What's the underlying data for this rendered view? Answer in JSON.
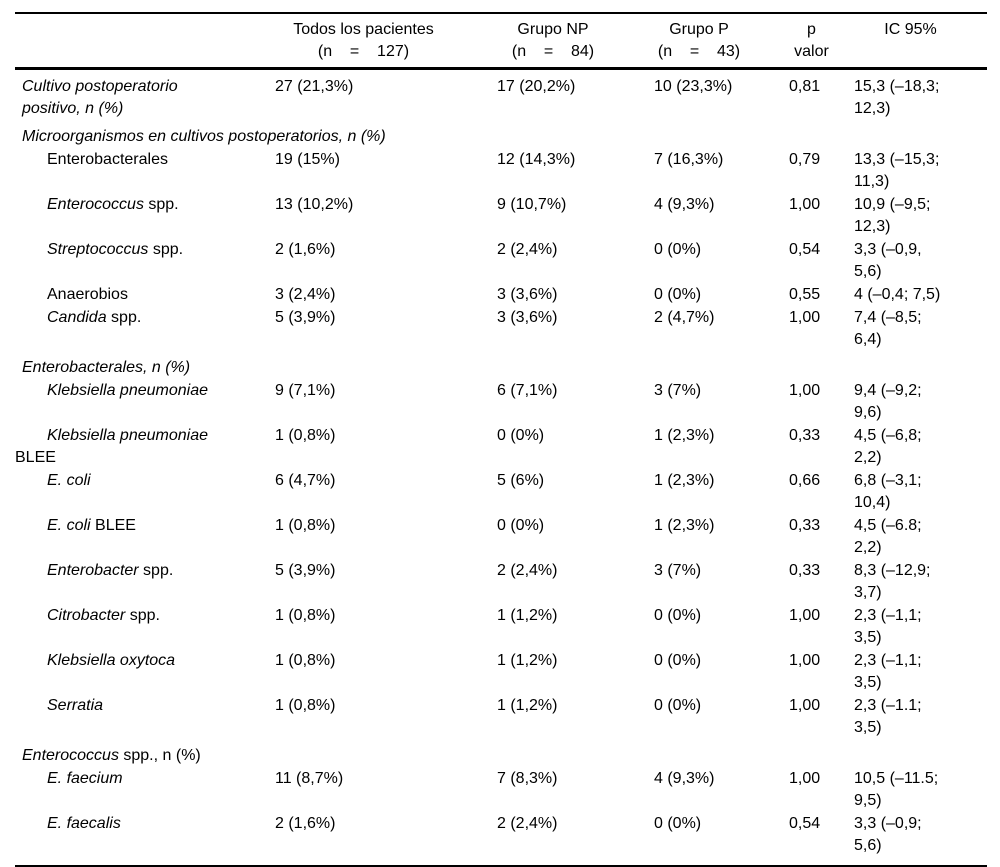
{
  "page": {
    "background": "#ffffff",
    "text_color": "#000000"
  },
  "table": {
    "header": {
      "label_col": "",
      "cols": [
        {
          "line1": "Todos los pacientes",
          "line2": "(n    =    127)"
        },
        {
          "line1": "Grupo NP",
          "line2": "(n    =    84)"
        },
        {
          "line1": "Grupo P",
          "line2": "(n    =    43)"
        },
        {
          "line1": "p valor",
          "line2": ""
        },
        {
          "line1": "IC 95%",
          "line2": ""
        }
      ]
    },
    "rows": [
      {
        "type": "data",
        "label_lines": [
          {
            "indent": 1,
            "segments": [
              {
                "text": "Cultivo postoperatorio",
                "italic": true
              }
            ]
          },
          {
            "indent": 1,
            "segments": [
              {
                "text": "positivo, n (%)",
                "italic": true
              }
            ]
          }
        ],
        "cells": [
          "27 (21,3%)",
          "17 (20,2%)",
          "10 (23,3%)",
          "0,81"
        ],
        "ic": [
          "15,3 (–18,3;",
          "12,3)"
        ]
      },
      {
        "type": "section",
        "label_lines": [
          {
            "indent": 1,
            "segments": [
              {
                "text": "Microorganismos en cultivos postoperatorios, n (%)",
                "italic": true
              }
            ]
          }
        ]
      },
      {
        "type": "data",
        "label_lines": [
          {
            "indent": 2,
            "segments": [
              {
                "text": "Enterobacterales",
                "italic": false
              }
            ]
          }
        ],
        "cells": [
          "19 (15%)",
          "12 (14,3%)",
          "7 (16,3%)",
          "0,79"
        ],
        "ic": [
          "13,3 (–15,3;",
          "11,3)"
        ]
      },
      {
        "type": "data",
        "label_lines": [
          {
            "indent": 2,
            "segments": [
              {
                "text": "Enterococcus",
                "italic": true
              },
              {
                "text": " spp.",
                "italic": false
              }
            ]
          }
        ],
        "cells": [
          "13 (10,2%)",
          "9 (10,7%)",
          "4 (9,3%)",
          "1,00"
        ],
        "ic": [
          "10,9 (–9,5;",
          "12,3)"
        ]
      },
      {
        "type": "data",
        "label_lines": [
          {
            "indent": 2,
            "segments": [
              {
                "text": "Streptococcus",
                "italic": true
              },
              {
                "text": " spp.",
                "italic": false
              }
            ]
          }
        ],
        "cells": [
          "2 (1,6%)",
          "2 (2,4%)",
          "0 (0%)",
          "0,54"
        ],
        "ic": [
          "3,3 (–0,9,",
          "5,6)"
        ]
      },
      {
        "type": "data",
        "label_lines": [
          {
            "indent": 2,
            "segments": [
              {
                "text": "Anaerobios",
                "italic": false
              }
            ]
          }
        ],
        "cells": [
          "3 (2,4%)",
          "3 (3,6%)",
          "0 (0%)",
          "0,55"
        ],
        "ic": [
          "4 (–0,4; 7,5)"
        ]
      },
      {
        "type": "data",
        "label_lines": [
          {
            "indent": 2,
            "segments": [
              {
                "text": "Candida",
                "italic": true
              },
              {
                "text": " spp.",
                "italic": false
              }
            ]
          }
        ],
        "cells": [
          "5 (3,9%)",
          "3 (3,6%)",
          "2 (4,7%)",
          "1,00"
        ],
        "ic": [
          "7,4 (–8,5;",
          "6,4)"
        ]
      },
      {
        "type": "section",
        "label_lines": [
          {
            "indent": 1,
            "segments": [
              {
                "text": "Enterobacterales, n (%)",
                "italic": true
              }
            ]
          }
        ]
      },
      {
        "type": "data",
        "label_lines": [
          {
            "indent": 2,
            "segments": [
              {
                "text": "Klebsiella pneumoniae",
                "italic": true
              }
            ]
          }
        ],
        "cells": [
          "9 (7,1%)",
          "6 (7,1%)",
          "3 (7%)",
          "1,00"
        ],
        "ic": [
          "9,4 (–9,2;",
          "9,6)"
        ]
      },
      {
        "type": "data",
        "label_lines": [
          {
            "indent": 2,
            "segments": [
              {
                "text": "Klebsiella pneumoniae",
                "italic": true
              }
            ]
          },
          {
            "indent": 0,
            "segments": [
              {
                "text": "BLEE",
                "italic": false
              }
            ]
          }
        ],
        "cells": [
          "1 (0,8%)",
          "0 (0%)",
          "1 (2,3%)",
          "0,33"
        ],
        "ic": [
          "4,5 (–6,8;",
          "2,2)"
        ]
      },
      {
        "type": "data",
        "label_lines": [
          {
            "indent": 2,
            "segments": [
              {
                "text": "E. coli",
                "italic": true
              }
            ]
          }
        ],
        "cells": [
          "6 (4,7%)",
          "5 (6%)",
          "1 (2,3%)",
          "0,66"
        ],
        "ic": [
          "6,8 (–3,1;",
          "10,4)"
        ]
      },
      {
        "type": "data",
        "label_lines": [
          {
            "indent": 2,
            "segments": [
              {
                "text": "E. coli",
                "italic": true
              },
              {
                "text": " BLEE",
                "italic": false
              }
            ]
          }
        ],
        "cells": [
          "1 (0,8%)",
          "0 (0%)",
          "1 (2,3%)",
          "0,33"
        ],
        "ic": [
          "4,5 (–6.8;",
          "2,2)"
        ]
      },
      {
        "type": "data",
        "label_lines": [
          {
            "indent": 2,
            "segments": [
              {
                "text": "Enterobacter",
                "italic": true
              },
              {
                "text": " spp.",
                "italic": false
              }
            ]
          }
        ],
        "cells": [
          "5 (3,9%)",
          "2 (2,4%)",
          "3 (7%)",
          "0,33"
        ],
        "ic": [
          "8,3 (–12,9;",
          "3,7)"
        ]
      },
      {
        "type": "data",
        "label_lines": [
          {
            "indent": 2,
            "segments": [
              {
                "text": "Citrobacter",
                "italic": true
              },
              {
                "text": " spp.",
                "italic": false
              }
            ]
          }
        ],
        "cells": [
          "1 (0,8%)",
          "1 (1,2%)",
          "0 (0%)",
          "1,00"
        ],
        "ic": [
          "2,3 (–1,1;",
          "3,5)"
        ]
      },
      {
        "type": "data",
        "label_lines": [
          {
            "indent": 2,
            "segments": [
              {
                "text": "Klebsiella oxytoca",
                "italic": true
              }
            ]
          }
        ],
        "cells": [
          "1 (0,8%)",
          "1 (1,2%)",
          "0 (0%)",
          "1,00"
        ],
        "ic": [
          "2,3 (–1,1;",
          "3,5)"
        ]
      },
      {
        "type": "data",
        "label_lines": [
          {
            "indent": 2,
            "segments": [
              {
                "text": "Serratia",
                "italic": true
              }
            ]
          }
        ],
        "cells": [
          "1 (0,8%)",
          "1 (1,2%)",
          "0 (0%)",
          "1,00"
        ],
        "ic": [
          "2,3 (–1.1;",
          "3,5)"
        ]
      },
      {
        "type": "section",
        "label_lines": [
          {
            "indent": 1,
            "segments": [
              {
                "text": "Enterococcus",
                "italic": true
              },
              {
                "text": " spp., n (%)",
                "italic": false
              }
            ]
          }
        ]
      },
      {
        "type": "data",
        "label_lines": [
          {
            "indent": 2,
            "segments": [
              {
                "text": "E. faecium",
                "italic": true
              }
            ]
          }
        ],
        "cells": [
          "11 (8,7%)",
          "7 (8,3%)",
          "4 (9,3%)",
          "1,00"
        ],
        "ic": [
          "10,5 (–11.5;",
          "9,5)"
        ]
      },
      {
        "type": "data",
        "label_lines": [
          {
            "indent": 2,
            "segments": [
              {
                "text": "E. faecalis",
                "italic": true
              }
            ]
          }
        ],
        "cells": [
          "2 (1,6%)",
          "2 (2,4%)",
          "0 (0%)",
          "0,54"
        ],
        "ic": [
          "3,3 (–0,9;",
          "5,6)"
        ]
      }
    ]
  }
}
